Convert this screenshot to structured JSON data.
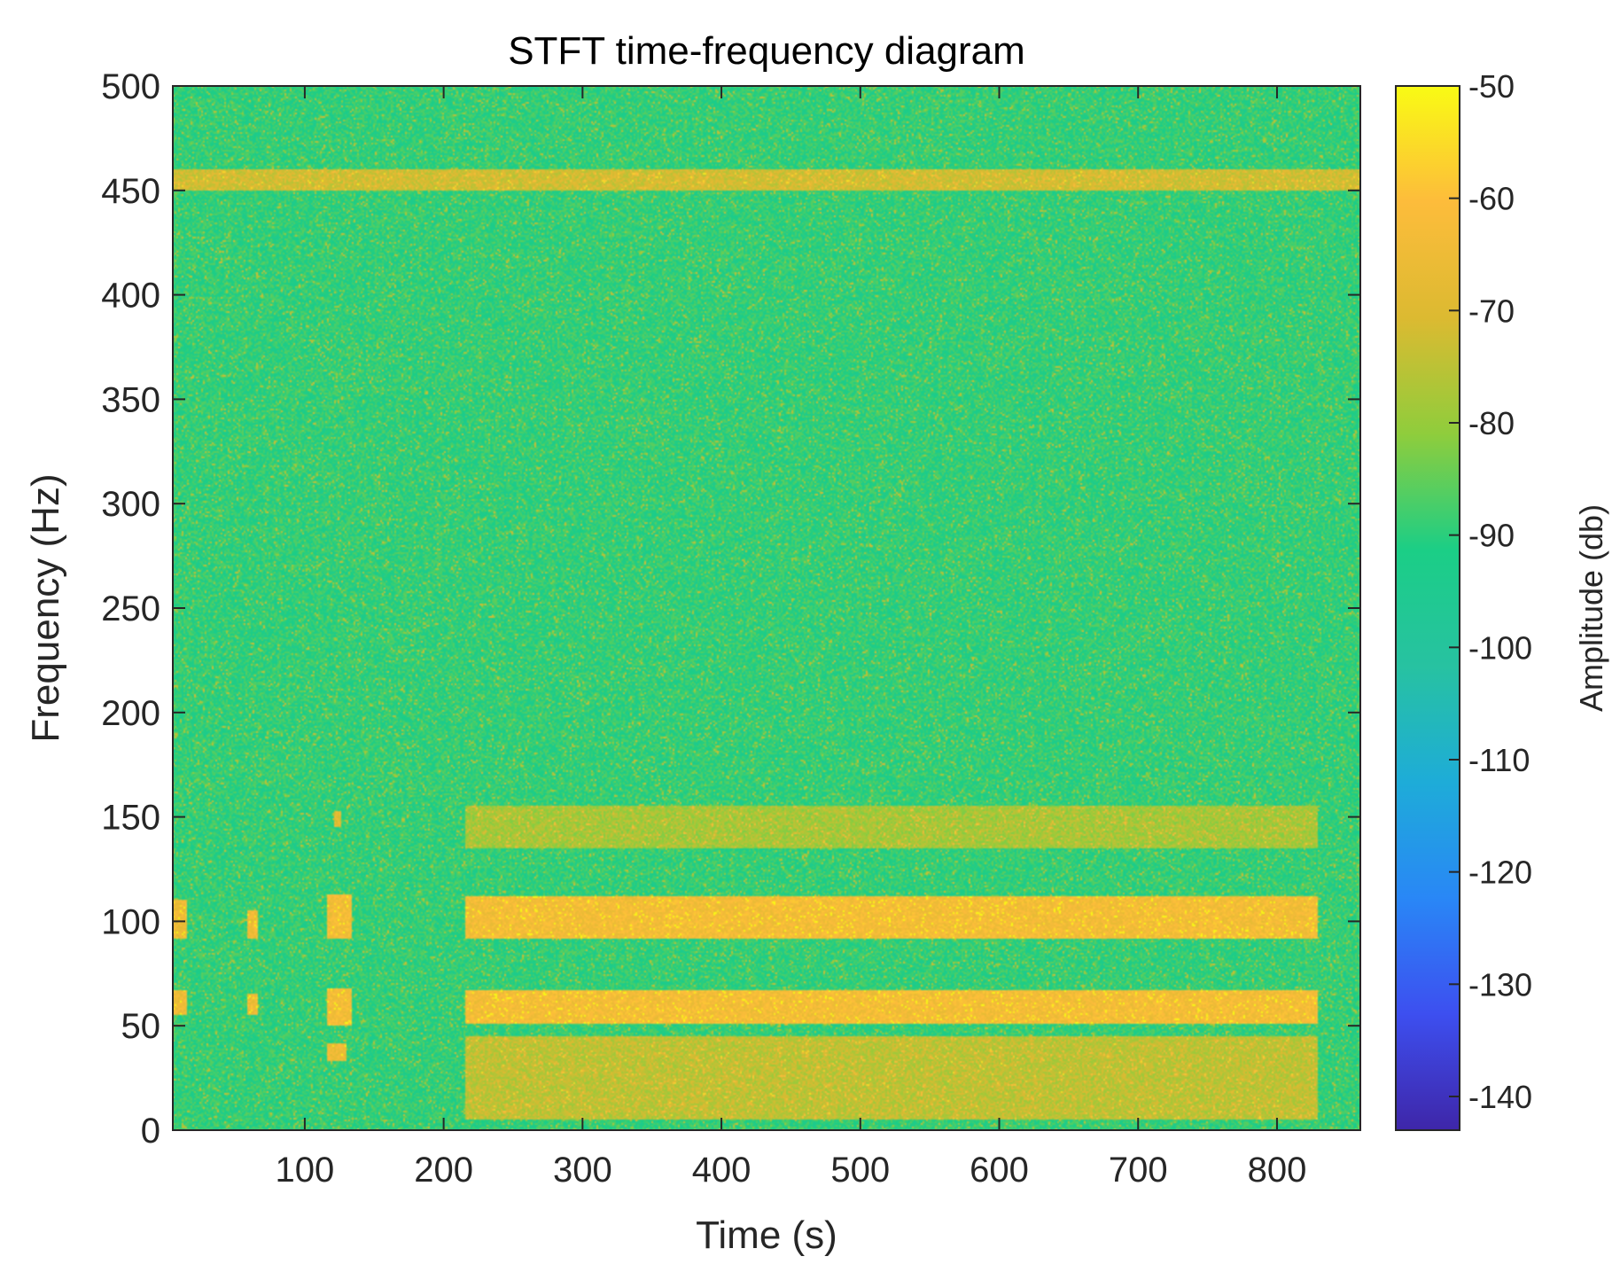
{
  "chart_data": {
    "type": "heatmap",
    "title": "STFT time-frequency diagram",
    "xlabel": "Time (s)",
    "ylabel": "Frequency (Hz)",
    "xlim": [
      5,
      860
    ],
    "ylim": [
      0,
      500
    ],
    "x_ticks": [
      100,
      200,
      300,
      400,
      500,
      600,
      700,
      800
    ],
    "y_ticks": [
      0,
      50,
      100,
      150,
      200,
      250,
      300,
      350,
      400,
      450,
      500
    ],
    "colorbar": {
      "label": "Amplitude (db)",
      "range": [
        -143,
        -50
      ],
      "ticks": [
        -50,
        -60,
        -70,
        -80,
        -90,
        -100,
        -110,
        -120,
        -130,
        -140
      ],
      "colormap": "parula",
      "colormap_stops": [
        "#3e26a8",
        "#3d4ff0",
        "#2987f6",
        "#1eacd8",
        "#27c2a1",
        "#1bce86",
        "#8fcd3c",
        "#dcba31",
        "#fdbc3b",
        "#f9fb14"
      ]
    },
    "background_level_db": -90,
    "bands": [
      {
        "t_start": 215,
        "t_end": 830,
        "f_low": 92,
        "f_high": 112,
        "level_db": -63
      },
      {
        "t_start": 215,
        "t_end": 830,
        "f_low": 51,
        "f_high": 67,
        "level_db": -63
      },
      {
        "t_start": 215,
        "t_end": 830,
        "f_low": 5,
        "f_high": 45,
        "level_db": -75
      },
      {
        "t_start": 215,
        "t_end": 830,
        "f_low": 135,
        "f_high": 155,
        "level_db": -78
      },
      {
        "t_start": 5,
        "t_end": 860,
        "f_low": 450,
        "f_high": 460,
        "level_db": -72
      },
      {
        "t_start": 5,
        "t_end": 15,
        "f_low": 92,
        "f_high": 110,
        "level_db": -65
      },
      {
        "t_start": 5,
        "t_end": 15,
        "f_low": 55,
        "f_high": 67,
        "level_db": -65
      },
      {
        "t_start": 58,
        "t_end": 66,
        "f_low": 92,
        "f_high": 105,
        "level_db": -65
      },
      {
        "t_start": 58,
        "t_end": 66,
        "f_low": 55,
        "f_high": 65,
        "level_db": -65
      },
      {
        "t_start": 116,
        "t_end": 134,
        "f_low": 92,
        "f_high": 113,
        "level_db": -63
      },
      {
        "t_start": 116,
        "t_end": 134,
        "f_low": 50,
        "f_high": 68,
        "level_db": -63
      },
      {
        "t_start": 116,
        "t_end": 130,
        "f_low": 33,
        "f_high": 42,
        "level_db": -65
      },
      {
        "t_start": 121,
        "t_end": 126,
        "f_low": 145,
        "f_high": 153,
        "level_db": -68
      }
    ]
  }
}
